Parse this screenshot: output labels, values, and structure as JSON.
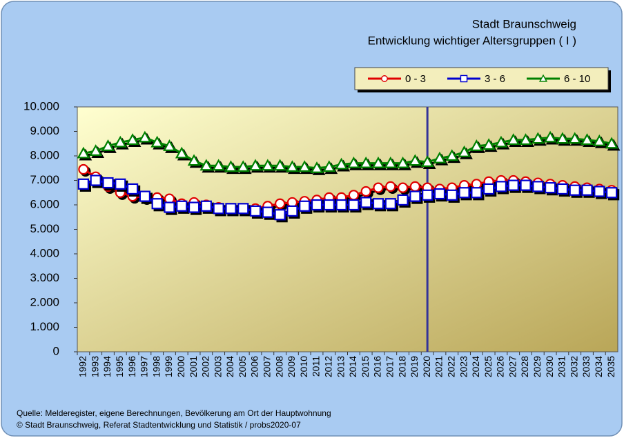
{
  "chart_data": {
    "type": "line",
    "title": "Stadt Braunschweig",
    "subtitle": "Entwicklung wichtiger Altersgruppen ( I )",
    "categories": [
      "1992",
      "1993",
      "1994",
      "1995",
      "1996",
      "1997",
      "1998",
      "1999",
      "2000",
      "2001",
      "2002",
      "2003",
      "2004",
      "2005",
      "2006",
      "2007",
      "2008",
      "2009",
      "2010",
      "2011",
      "2012",
      "2013",
      "2014",
      "2015",
      "2016",
      "2017",
      "2018",
      "2019",
      "2020",
      "2021",
      "2022",
      "2023",
      "2024",
      "2025",
      "2026",
      "2027",
      "2028",
      "2029",
      "2030",
      "2031",
      "2032",
      "2033",
      "2034",
      "2035"
    ],
    "series": [
      {
        "name": "0 - 3",
        "color": "#e00000",
        "marker": "circle",
        "values": [
          7450,
          7150,
          6750,
          6500,
          6350,
          6300,
          6300,
          6250,
          6050,
          6100,
          6000,
          5900,
          5850,
          5850,
          5850,
          5950,
          6050,
          6100,
          6150,
          6200,
          6300,
          6300,
          6400,
          6550,
          6700,
          6750,
          6700,
          6750,
          6700,
          6650,
          6700,
          6800,
          6850,
          6950,
          7000,
          7000,
          6950,
          6900,
          6850,
          6800,
          6750,
          6700,
          6650,
          6600
        ]
      },
      {
        "name": "3 - 6",
        "color": "#0000d0",
        "marker": "square",
        "values": [
          6850,
          7000,
          6900,
          6850,
          6650,
          6350,
          6050,
          5900,
          5950,
          5900,
          5950,
          5850,
          5850,
          5850,
          5750,
          5700,
          5600,
          5750,
          5950,
          6000,
          6000,
          6000,
          6000,
          6100,
          6050,
          6050,
          6200,
          6350,
          6400,
          6450,
          6400,
          6500,
          6500,
          6650,
          6750,
          6800,
          6800,
          6750,
          6700,
          6650,
          6600,
          6600,
          6550,
          6500
        ]
      },
      {
        "name": "6 - 10",
        "color": "#008000",
        "marker": "triangle",
        "values": [
          8100,
          8200,
          8400,
          8550,
          8650,
          8750,
          8550,
          8400,
          8100,
          7800,
          7600,
          7600,
          7550,
          7550,
          7600,
          7600,
          7600,
          7550,
          7550,
          7500,
          7550,
          7650,
          7700,
          7700,
          7700,
          7700,
          7700,
          7800,
          7750,
          7900,
          8000,
          8150,
          8400,
          8450,
          8550,
          8650,
          8650,
          8700,
          8750,
          8700,
          8700,
          8650,
          8600,
          8500
        ]
      }
    ],
    "ylim": [
      0,
      10000
    ],
    "yticks": [
      0,
      {
        "value": 1000,
        "label": "1.000"
      },
      {
        "value": 2000,
        "label": "2.000"
      },
      {
        "value": 3000,
        "label": "3.000"
      },
      {
        "value": 4000,
        "label": "4.000"
      },
      {
        "value": 5000,
        "label": "5.000"
      },
      {
        "value": 6000,
        "label": "6.000"
      },
      {
        "value": 7000,
        "label": "7.000"
      },
      {
        "value": 8000,
        "label": "8.000"
      },
      {
        "value": 9000,
        "label": "9.000"
      },
      {
        "value": 10000,
        "label": "10.000"
      }
    ],
    "vline_category": "2020",
    "legend": "top-right",
    "source": [
      "Quelle: Melderegister, eigene Berechnungen, Bevölkerung am Ort der Hauptwohnung",
      "© Stadt Braunschweig, Referat Stadtentwicklung und Statistik / probs2020-07"
    ]
  }
}
